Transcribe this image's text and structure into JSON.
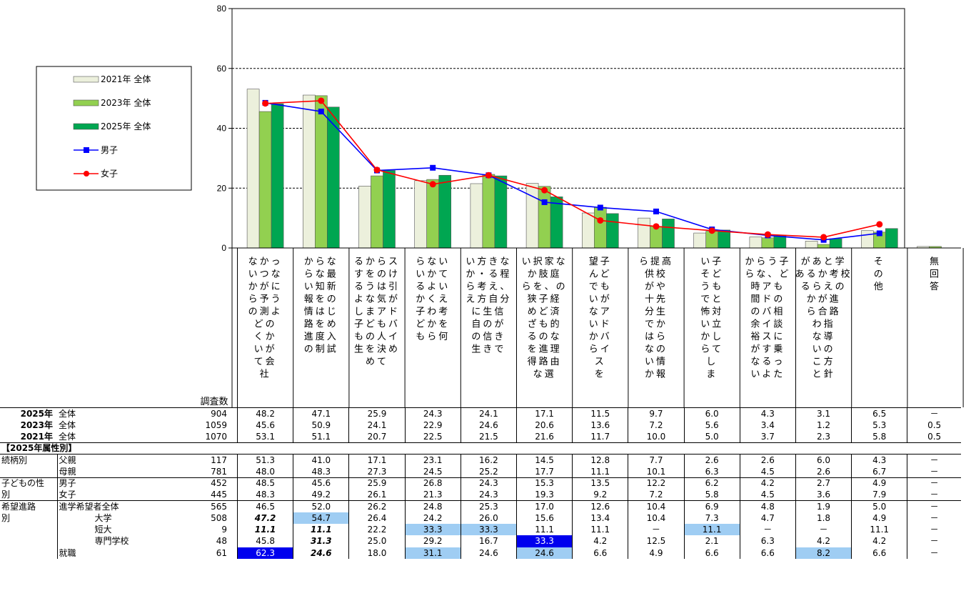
{
  "chart_data": {
    "type": "bar",
    "ylim": [
      0,
      80
    ],
    "yticks": [
      0,
      20,
      40,
      60,
      80
    ],
    "grid": "dashed horizontal at 20, 40, 60",
    "legend_position": "left",
    "categories": [
      "社会がどのようになっていくか予測がつかないから",
      "入試制度や進路情報を知らないから",
      "子どもの人生を決めてしまうようなアドバイスをするのは気が引けるから",
      "子どもが何を考えているかよくわからないから",
      "子どもにアドバイスできるほど、自分の生き方・考え方に自信がないから",
      "家庭の経済的な理由で、子どもの進路の選択肢を狭めざるを得ないから",
      "子どもがアドバイスを望んでいないから",
      "高校や先生からの情報提供が十分ではないから",
      "子どもと対立してしまいそうで怖いから",
      "子どもの相談に乗ったりアドバイスするような時間の余裕がないから",
      "学校の進路指導の方針と考えが合わないことがあるから",
      "その他",
      "無回答"
    ],
    "category_column_lines": [
      [
        "なかっ",
        "いつな",
        "かがに",
        "ら予う",
        "の測よ",
        "どの",
        "くか",
        "いが",
        "て会",
        "社"
      ],
      [
        "からな",
        "らな最",
        "い知新",
        "報をの",
        "情はじ",
        "路をめ",
        "進度入",
        "の制試"
      ],
      [
        "るからス",
        "すをのけ",
        "るうは引",
        "よな気が",
        "しまアド",
        "子どもバ",
        "もの人イ",
        "生を決め",
        "めて"
      ],
      [
        "らない",
        "いかて",
        "るよい",
        "かくえ",
        "子わ考",
        "どかを",
        "もら何"
      ],
      [
        "い方きな",
        "か・る程",
        "ら考え、",
        "え方自分",
        "に生信",
        "自のが",
        "の信き",
        "生きで"
      ],
      [
        "い択家な",
        "か肢庭",
        "らを、の",
        "狭子経",
        "めど済",
        "ざも的",
        "るのな",
        "を進理",
        "得路由",
        "な選"
      ],
      [
        "望子",
        "んど",
        "でも",
        "いが",
        "なア",
        "いド",
        "かバ",
        "らイ",
        "ス",
        "を"
      ],
      [
        "ら提高",
        "供校",
        "がや",
        "十先",
        "分生",
        "でか",
        "はら",
        "なの",
        "い情",
        "か報"
      ],
      [
        "い子",
        "そど",
        "うも",
        "でと",
        "怖対",
        "い立",
        "かし",
        "らて",
        "し",
        "ま"
      ],
      [
        "からう子",
        "らな、ど",
        "時アも",
        "間ドの",
        "のバ相",
        "余イ談",
        "裕スに",
        "がす乗",
        "なるっ",
        "いよた"
      ],
      [
        "があと学",
        "あるか考校",
        "るらえの",
        "かが進",
        "ら合路",
        "わ指",
        "な導",
        "いの",
        "こ方",
        "と針"
      ],
      [
        "そ",
        "の",
        "他"
      ],
      [
        "無",
        "回",
        "答"
      ]
    ],
    "series": [
      {
        "name": "2021年 全体",
        "kind": "bar",
        "color": "#ecf0dc",
        "values": [
          53.1,
          51.1,
          20.7,
          22.5,
          21.5,
          21.6,
          11.7,
          10.0,
          5.0,
          3.7,
          2.3,
          5.8,
          0.5
        ]
      },
      {
        "name": "2023年 全体",
        "kind": "bar",
        "color": "#92d050",
        "values": [
          45.6,
          50.9,
          24.1,
          22.9,
          24.6,
          20.6,
          13.6,
          7.2,
          5.6,
          3.4,
          1.2,
          5.3,
          0.5
        ]
      },
      {
        "name": "2025年 全体",
        "kind": "bar",
        "color": "#00a651",
        "values": [
          48.2,
          47.1,
          25.9,
          24.3,
          24.1,
          17.1,
          11.5,
          9.7,
          6.0,
          4.3,
          3.1,
          6.5,
          null
        ]
      },
      {
        "name": "男子",
        "kind": "line",
        "color": "#0000ff",
        "marker": "square",
        "values": [
          48.5,
          45.6,
          25.9,
          26.8,
          24.3,
          15.3,
          13.5,
          12.2,
          6.2,
          4.2,
          2.7,
          4.9,
          null
        ]
      },
      {
        "name": "女子",
        "kind": "line",
        "color": "#ff0000",
        "marker": "circle",
        "values": [
          48.3,
          49.2,
          26.1,
          21.3,
          24.3,
          19.3,
          9.2,
          7.2,
          5.8,
          4.5,
          3.6,
          7.9,
          null
        ]
      }
    ]
  },
  "table": {
    "n_header": "調査数",
    "summary_rows": [
      {
        "year": "2025年",
        "group": "全体",
        "n": "904",
        "values": [
          "48.2",
          "47.1",
          "25.9",
          "24.3",
          "24.1",
          "17.1",
          "11.5",
          "9.7",
          "6.0",
          "4.3",
          "3.1",
          "6.5",
          "－"
        ]
      },
      {
        "year": "2023年",
        "group": "全体",
        "n": "1059",
        "values": [
          "45.6",
          "50.9",
          "24.1",
          "22.9",
          "24.6",
          "20.6",
          "13.6",
          "7.2",
          "5.6",
          "3.4",
          "1.2",
          "5.3",
          "0.5"
        ]
      },
      {
        "year": "2021年",
        "group": "全体",
        "n": "1070",
        "values": [
          "53.1",
          "51.1",
          "20.7",
          "22.5",
          "21.5",
          "21.6",
          "11.7",
          "10.0",
          "5.0",
          "3.7",
          "2.3",
          "5.8",
          "0.5"
        ]
      }
    ],
    "section_label": "【2025年属性別】",
    "attr_rows": [
      {
        "g1": "続柄別",
        "g2": "父親",
        "n": "117",
        "values": [
          "51.3",
          "41.0",
          "17.1",
          "23.1",
          "16.2",
          "14.5",
          "12.8",
          "7.7",
          "2.6",
          "2.6",
          "6.0",
          "4.3",
          "－"
        ]
      },
      {
        "g1": "",
        "g2": "母親",
        "n": "781",
        "values": [
          "48.0",
          "48.3",
          "27.3",
          "24.5",
          "25.2",
          "17.7",
          "11.1",
          "10.1",
          "6.3",
          "4.5",
          "2.6",
          "6.7",
          "－"
        ]
      },
      {
        "g1": "子どもの性",
        "g2": "男子",
        "n": "452",
        "values": [
          "48.5",
          "45.6",
          "25.9",
          "26.8",
          "24.3",
          "15.3",
          "13.5",
          "12.2",
          "6.2",
          "4.2",
          "2.7",
          "4.9",
          "－"
        ]
      },
      {
        "g1": "別",
        "g2": "女子",
        "n": "445",
        "values": [
          "48.3",
          "49.2",
          "26.1",
          "21.3",
          "24.3",
          "19.3",
          "9.2",
          "7.2",
          "5.8",
          "4.5",
          "3.6",
          "7.9",
          "－"
        ]
      },
      {
        "g1": "希望進路",
        "g2": "進学希望者全体",
        "n": "565",
        "values": [
          "46.5",
          "52.0",
          "26.2",
          "24.8",
          "25.3",
          "17.0",
          "12.6",
          "10.4",
          "6.9",
          "4.8",
          "1.9",
          "5.0",
          "－"
        ]
      },
      {
        "g1": "別",
        "g2": "大学",
        "n": "508",
        "values": [
          "47.2",
          "54.7",
          "26.4",
          "24.2",
          "26.0",
          "15.6",
          "13.4",
          "10.4",
          "7.3",
          "4.7",
          "1.8",
          "4.9",
          "－"
        ]
      },
      {
        "g1": "",
        "g2": "短大",
        "n": "9",
        "values": [
          "11.1",
          "11.1",
          "22.2",
          "33.3",
          "33.3",
          "11.1",
          "11.1",
          "－",
          "11.1",
          "－",
          "－",
          "11.1",
          "－"
        ]
      },
      {
        "g1": "",
        "g2": "専門学校",
        "n": "48",
        "values": [
          "45.8",
          "31.3",
          "25.0",
          "29.2",
          "16.7",
          "33.3",
          "4.2",
          "12.5",
          "2.1",
          "6.3",
          "4.2",
          "4.2",
          "－"
        ]
      },
      {
        "g1": "",
        "g2": "就職",
        "n": "61",
        "values": [
          "62.3",
          "24.6",
          "18.0",
          "31.1",
          "24.6",
          "24.6",
          "6.6",
          "4.9",
          "6.6",
          "6.6",
          "8.2",
          "6.6",
          "－"
        ]
      }
    ],
    "highlights": {
      "light": [
        [
          5,
          1
        ],
        [
          6,
          3
        ],
        [
          6,
          4
        ],
        [
          6,
          8
        ],
        [
          8,
          3
        ],
        [
          8,
          5
        ],
        [
          8,
          10
        ],
        [
          7,
          5
        ]
      ],
      "dark": [
        [
          7,
          5
        ],
        [
          8,
          0
        ]
      ],
      "bold_italic": [
        [
          5,
          0
        ],
        [
          6,
          0
        ],
        [
          6,
          1
        ],
        [
          7,
          1
        ],
        [
          8,
          1
        ]
      ]
    }
  }
}
